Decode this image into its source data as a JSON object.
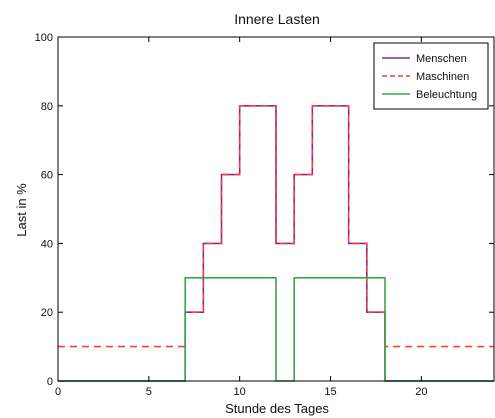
{
  "chart_data": {
    "type": "line",
    "title": "Innere Lasten",
    "xlabel": "Stunde des Tages",
    "ylabel": "Last in %",
    "xlim": [
      0,
      24
    ],
    "ylim": [
      0,
      100
    ],
    "x_ticks": [
      0,
      5,
      10,
      15,
      20
    ],
    "y_ticks": [
      0,
      20,
      40,
      60,
      80,
      100
    ],
    "grid": false,
    "legend_position": "top-right",
    "step": true,
    "series": [
      {
        "name": "Menschen",
        "color": "#7030a0",
        "dash": "solid",
        "x": [
          0,
          7,
          7,
          8,
          8,
          9,
          9,
          10,
          10,
          12,
          12,
          13,
          13,
          14,
          14,
          16,
          16,
          17,
          17,
          18,
          18,
          24
        ],
        "y": [
          0,
          0,
          20,
          20,
          40,
          40,
          60,
          60,
          80,
          80,
          40,
          40,
          60,
          60,
          80,
          80,
          40,
          40,
          20,
          20,
          0,
          0
        ]
      },
      {
        "name": "Maschinen",
        "color": "#ff3b3b",
        "dash": "dashed",
        "x": [
          0,
          7,
          7,
          8,
          8,
          9,
          9,
          10,
          10,
          12,
          12,
          13,
          13,
          14,
          14,
          16,
          16,
          17,
          17,
          18,
          18,
          24
        ],
        "y": [
          10,
          10,
          20,
          20,
          40,
          40,
          60,
          60,
          80,
          80,
          40,
          40,
          60,
          60,
          80,
          80,
          40,
          40,
          20,
          20,
          10,
          10
        ]
      },
      {
        "name": "Beleuchtung",
        "color": "#3aa64a",
        "dash": "solid",
        "x": [
          0,
          7,
          7,
          12,
          12,
          13,
          13,
          18,
          18,
          24
        ],
        "y": [
          0,
          0,
          30,
          30,
          0,
          0,
          30,
          30,
          0,
          0
        ]
      }
    ]
  }
}
